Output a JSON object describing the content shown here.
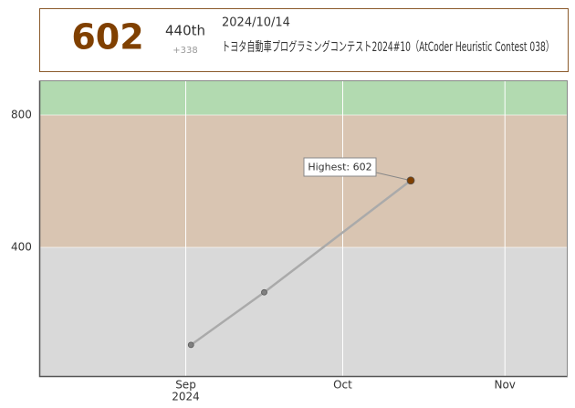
{
  "header": {
    "rating": "602",
    "rank": "440th",
    "rating_change": "+338",
    "date": "2024/10/14",
    "contest": "トヨタ自動車プログラミングコンテスト2024#10（AtCoder Heuristic Contest 038）"
  },
  "chart_data": {
    "type": "line",
    "x": [
      "2024-09-02",
      "2024-09-16",
      "2024-10-14"
    ],
    "series": [
      {
        "color": "#aaaaaa",
        "point_colors": [
          "#808080",
          "#808080",
          "#804000"
        ],
        "values": [
          105,
          264,
          602
        ]
      }
    ],
    "xlim": [
      "2024-08-04",
      "2024-11-13"
    ],
    "xticks": [
      {
        "value": "2024-09-01",
        "label": "Sep"
      },
      {
        "value": "2024-10-01",
        "label": "Oct"
      },
      {
        "value": "2024-11-01",
        "label": "Nov"
      }
    ],
    "x_year_label": "2024",
    "ylim": [
      8,
      905
    ],
    "yticks": [
      400,
      800
    ],
    "grid": true,
    "bands": [
      {
        "from": 0,
        "to": 400,
        "color": "#d9d9d9"
      },
      {
        "from": 400,
        "to": 800,
        "color": "#d9c5b2"
      },
      {
        "from": 800,
        "to": 1200,
        "color": "#b2dab0"
      }
    ],
    "annotation": "Highest: 602"
  }
}
